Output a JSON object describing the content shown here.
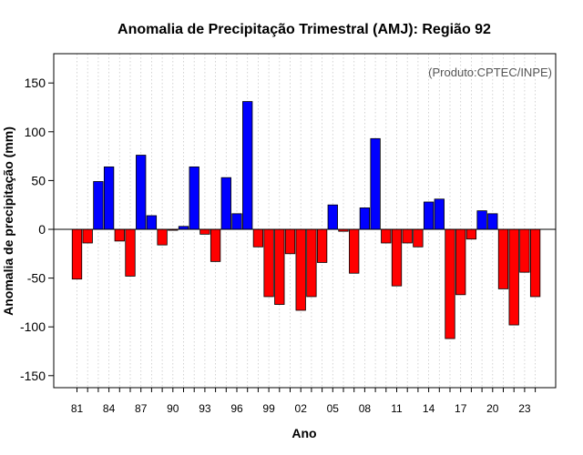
{
  "chart_data": {
    "type": "bar",
    "title": "Anomalia de Precipitação Trimestral (AMJ): Região 92",
    "xlabel": "Ano",
    "ylabel": "Anomalia de precipitação (mm)",
    "credit": "(Produto:CPTEC/INPE)",
    "ylim": [
      -163,
      180
    ],
    "yticks": [
      -150,
      -100,
      -50,
      0,
      50,
      100,
      150
    ],
    "xtick_labels": [
      "81",
      "84",
      "87",
      "90",
      "93",
      "96",
      "99",
      "02",
      "05",
      "08",
      "11",
      "14",
      "17",
      "20",
      "23"
    ],
    "grid": true,
    "positive_color": "#0000ff",
    "negative_color": "#ff0000",
    "categories": [
      1981,
      1982,
      1983,
      1984,
      1985,
      1986,
      1987,
      1988,
      1989,
      1990,
      1991,
      1992,
      1993,
      1994,
      1995,
      1996,
      1997,
      1998,
      1999,
      2000,
      2001,
      2002,
      2003,
      2004,
      2005,
      2006,
      2007,
      2008,
      2009,
      2010,
      2011,
      2012,
      2013,
      2014,
      2015,
      2016,
      2017,
      2018,
      2019,
      2020,
      2021,
      2022,
      2023,
      2024
    ],
    "values": [
      -51,
      -14,
      49,
      64,
      -12,
      -48,
      76,
      14,
      -16,
      -1,
      3,
      64,
      -5,
      -33,
      53,
      16,
      131,
      -18,
      -69,
      -77,
      -25,
      -83,
      -69,
      -34,
      25,
      -2,
      -45,
      22,
      93,
      -14,
      -58,
      -14,
      -18,
      28,
      31,
      -112,
      -67,
      -10,
      19,
      16,
      -61,
      -98,
      -44,
      -69
    ]
  }
}
